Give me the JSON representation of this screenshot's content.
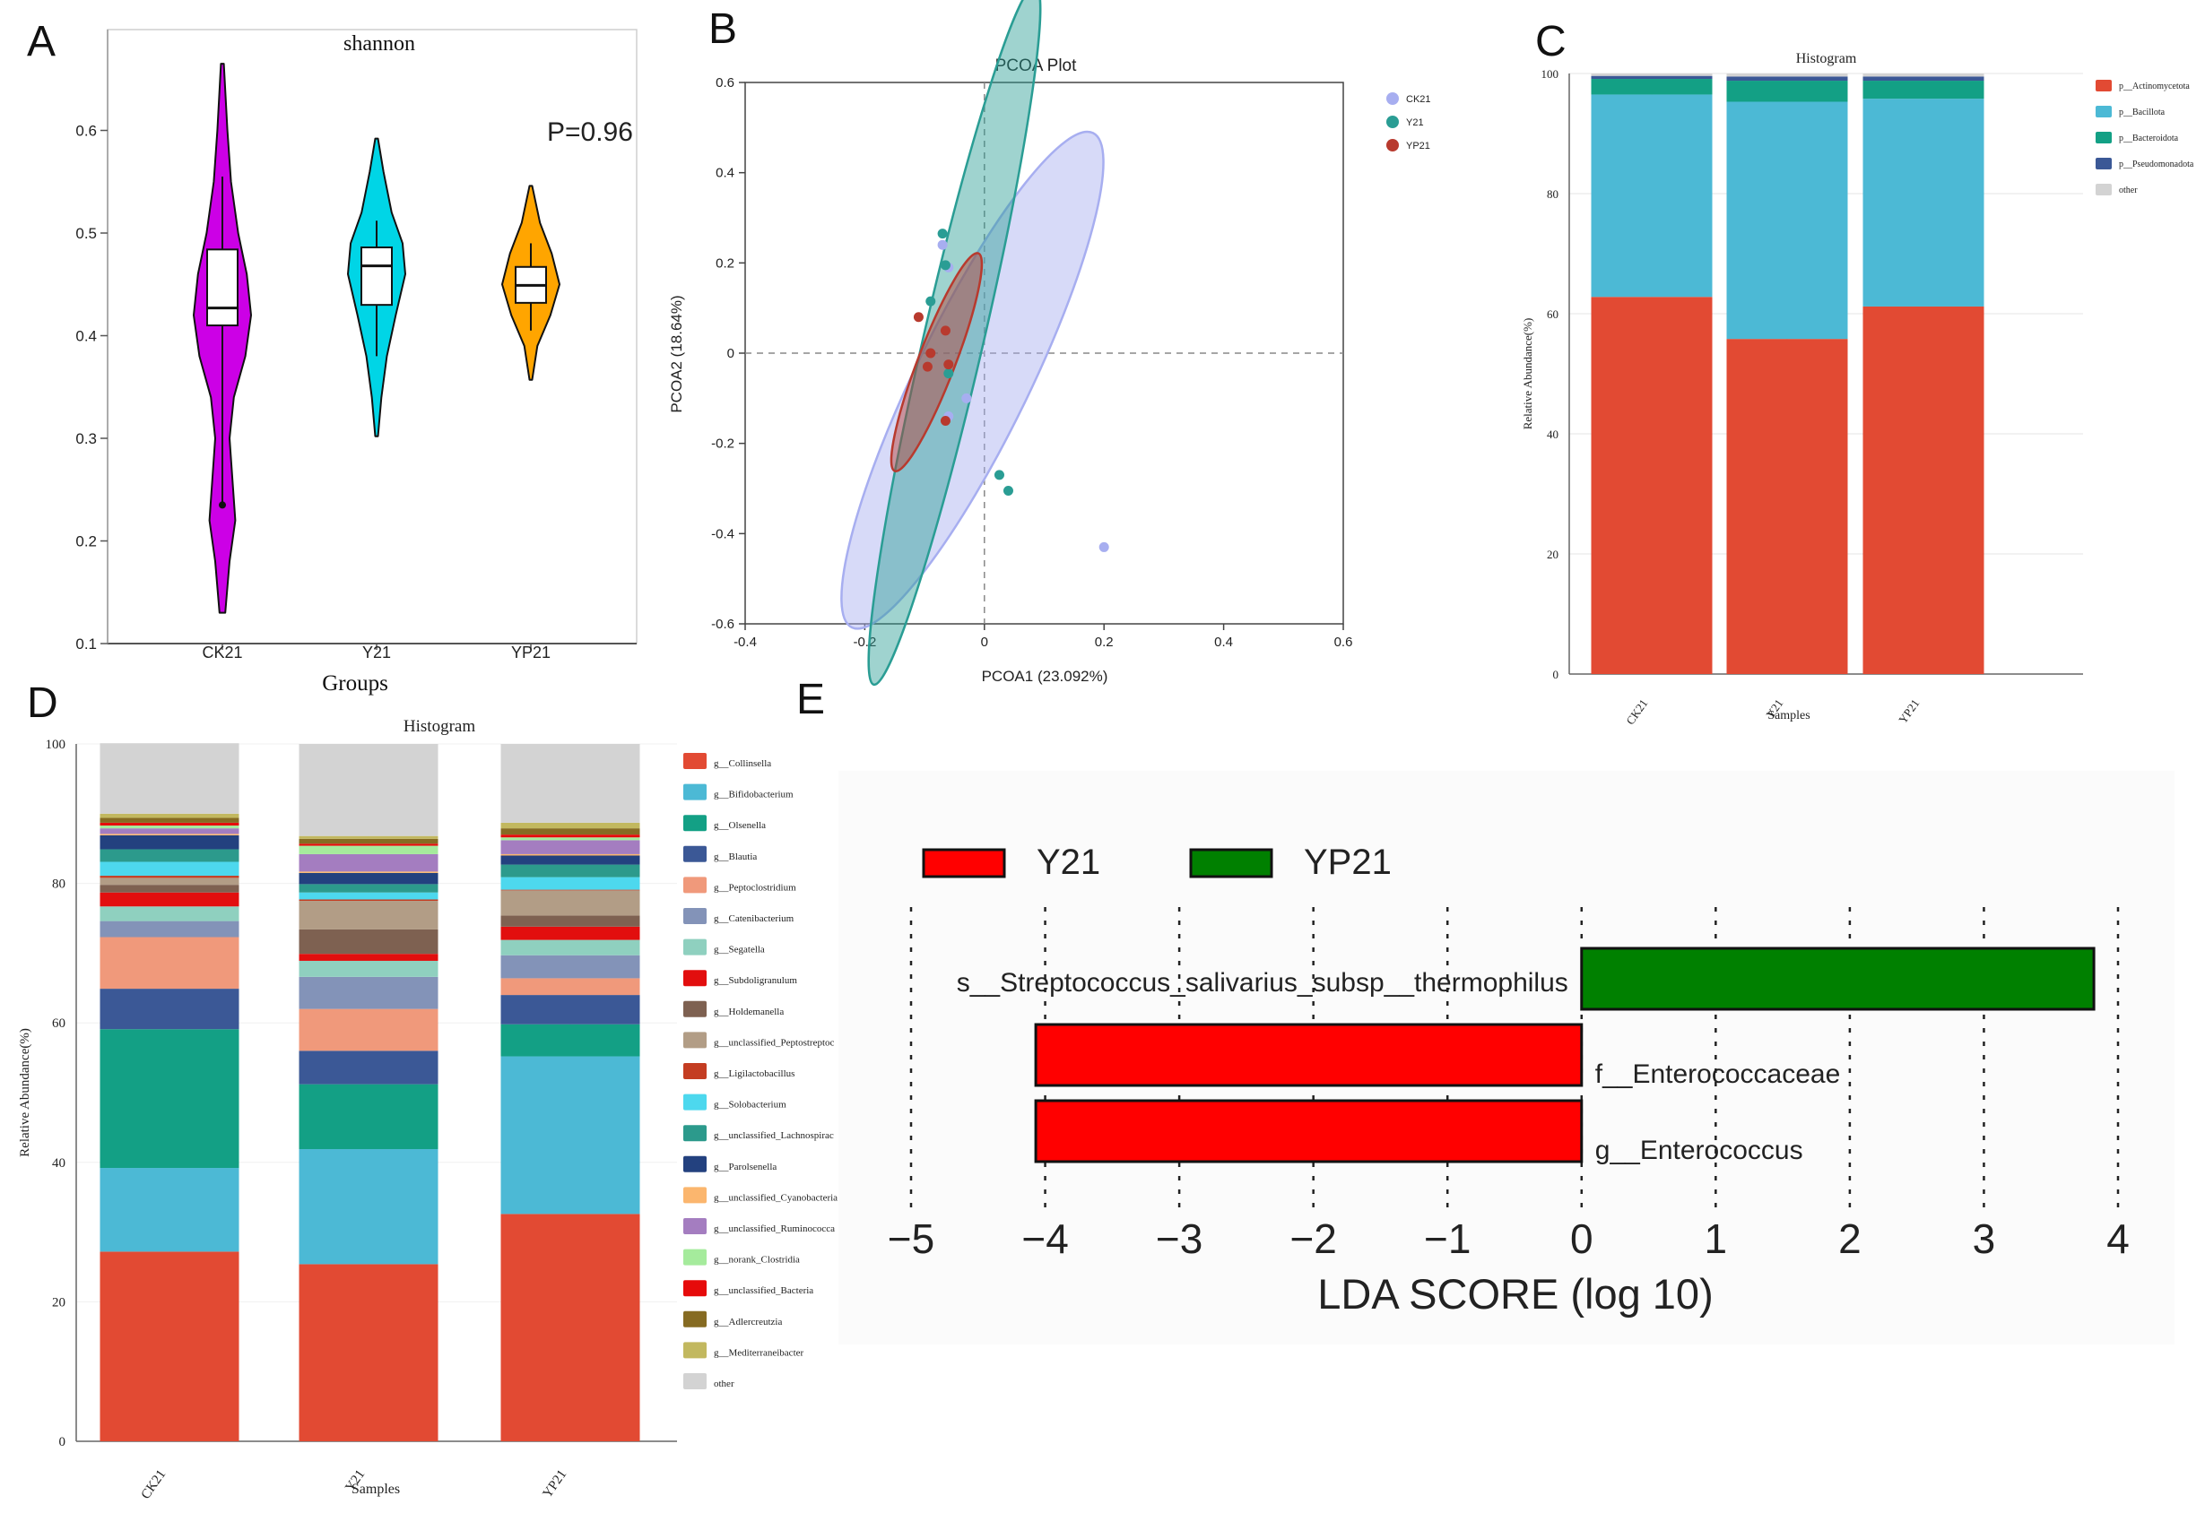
{
  "panels": {
    "a": "A",
    "b": "B",
    "c": "C",
    "d": "D",
    "e": "E"
  },
  "chart_data": [
    {
      "id": "A",
      "type": "violin",
      "title": "shannon",
      "xlabel": "Groups",
      "ylabel": "",
      "ylim": [
        0.1,
        0.7
      ],
      "yticks": [
        "0.1",
        "0.2",
        "0.3",
        "0.4",
        "0.5",
        "0.6"
      ],
      "annotation": "P=0.96",
      "groups": [
        {
          "name": "CK21",
          "color": "#cc00e6",
          "min": 0.13,
          "max": 0.665,
          "q1": 0.41,
          "median": 0.427,
          "q3": 0.484,
          "whisker_low": 0.235,
          "whisker_high": 0.555,
          "density": [
            [
              0.13,
              0.2
            ],
            [
              0.18,
              0.5
            ],
            [
              0.22,
              0.9
            ],
            [
              0.26,
              0.7
            ],
            [
              0.3,
              0.5
            ],
            [
              0.34,
              0.8
            ],
            [
              0.38,
              1.6
            ],
            [
              0.42,
              2.0
            ],
            [
              0.46,
              1.7
            ],
            [
              0.5,
              1.1
            ],
            [
              0.55,
              0.6
            ],
            [
              0.6,
              0.35
            ],
            [
              0.665,
              0.1
            ]
          ]
        },
        {
          "name": "Y21",
          "color": "#00d5e6",
          "min": 0.302,
          "max": 0.592,
          "q1": 0.43,
          "median": 0.468,
          "q3": 0.486,
          "whisker_low": 0.38,
          "whisker_high": 0.512,
          "density": [
            [
              0.302,
              0.1
            ],
            [
              0.34,
              0.35
            ],
            [
              0.38,
              0.75
            ],
            [
              0.42,
              1.4
            ],
            [
              0.46,
              2.1
            ],
            [
              0.49,
              1.9
            ],
            [
              0.52,
              1.1
            ],
            [
              0.56,
              0.5
            ],
            [
              0.592,
              0.1
            ]
          ]
        },
        {
          "name": "YP21",
          "color": "#ffa500",
          "min": 0.357,
          "max": 0.546,
          "q1": 0.432,
          "median": 0.449,
          "q3": 0.467,
          "whisker_low": 0.405,
          "whisker_high": 0.49,
          "density": [
            [
              0.357,
              0.1
            ],
            [
              0.39,
              0.5
            ],
            [
              0.42,
              1.5
            ],
            [
              0.45,
              2.2
            ],
            [
              0.48,
              1.6
            ],
            [
              0.51,
              0.7
            ],
            [
              0.546,
              0.1
            ]
          ]
        }
      ]
    },
    {
      "id": "B",
      "type": "scatter",
      "title": "PCOA Plot",
      "xlabel": "PCOA1 (23.092%)",
      "ylabel": "PCOA2 (18.64%)",
      "xlim": [
        -0.4,
        0.6
      ],
      "ylim": [
        -0.6,
        0.6
      ],
      "xticks": [
        "-0.4",
        "-0.2",
        "0",
        "0.2",
        "0.4",
        "0.6"
      ],
      "yticks": [
        "-0.6",
        "-0.4",
        "-0.2",
        "0",
        "0.2",
        "0.4",
        "0.6"
      ],
      "series": [
        {
          "name": "CK21",
          "color": "#a7aef0",
          "points": [
            [
              -0.07,
              0.24
            ],
            [
              -0.06,
              0.19
            ],
            [
              -0.03,
              -0.1
            ],
            [
              -0.06,
              -0.14
            ],
            [
              0.2,
              -0.43
            ]
          ],
          "ellipse": {
            "cx": -0.02,
            "cy": -0.06,
            "rx": 0.46,
            "ry": 0.095,
            "angle_deg": -64
          }
        },
        {
          "name": "Y21",
          "color": "#2a9d94",
          "points": [
            [
              -0.07,
              0.265
            ],
            [
              -0.065,
              0.195
            ],
            [
              -0.09,
              0.115
            ],
            [
              -0.06,
              -0.045
            ],
            [
              0.025,
              -0.27
            ],
            [
              0.04,
              -0.305
            ]
          ],
          "ellipse": {
            "cx": -0.05,
            "cy": 0.04,
            "rx": 0.6,
            "ry": 0.05,
            "angle_deg": -77
          }
        },
        {
          "name": "YP21",
          "color": "#b83a2e",
          "points": [
            [
              -0.11,
              0.08
            ],
            [
              -0.09,
              0.0
            ],
            [
              -0.095,
              -0.03
            ],
            [
              -0.065,
              0.05
            ],
            [
              -0.06,
              -0.025
            ],
            [
              -0.065,
              -0.15
            ]
          ],
          "ellipse": {
            "cx": -0.08,
            "cy": -0.02,
            "rx": 0.195,
            "ry": 0.031,
            "angle_deg": -69
          }
        }
      ]
    },
    {
      "id": "C",
      "type": "bar",
      "stacked": true,
      "title": "Histogram",
      "xlabel": "Samples",
      "ylabel": "Relative Abundance(%)",
      "ylim": [
        0,
        100
      ],
      "yticks": [
        "0",
        "20",
        "40",
        "60",
        "80",
        "100"
      ],
      "categories": [
        "CK21",
        "Y21",
        "YP21"
      ],
      "series": [
        {
          "name": "p__Actinomycetota",
          "color": "#e24a33",
          "values": [
            62.8,
            55.8,
            61.2
          ]
        },
        {
          "name": "p__Bacillota",
          "color": "#4cb9d5",
          "values": [
            33.7,
            39.5,
            34.6
          ]
        },
        {
          "name": "p__Bacteroidota",
          "color": "#13a085",
          "values": [
            2.6,
            3.5,
            3.0
          ]
        },
        {
          "name": "p__Pseudomonadota",
          "color": "#3b5896",
          "values": [
            0.5,
            0.7,
            0.7
          ]
        },
        {
          "name": "other",
          "color": "#d3d3d3",
          "values": [
            0.4,
            0.5,
            0.5
          ]
        }
      ]
    },
    {
      "id": "D",
      "type": "bar",
      "stacked": true,
      "title": "Histogram",
      "xlabel": "Samples",
      "ylabel": "Relative Abundance(%)",
      "ylim": [
        0,
        100
      ],
      "yticks": [
        "0",
        "20",
        "40",
        "60",
        "80",
        "100"
      ],
      "categories": [
        "CK21",
        "Y21",
        "YP21"
      ],
      "series": [
        {
          "name": "g__Collinsella",
          "color": "#e24a33",
          "values": [
            27.2,
            25.4,
            32.6
          ]
        },
        {
          "name": "g__Bifidobacterium",
          "color": "#4cb9d5",
          "values": [
            12.0,
            16.5,
            22.6
          ]
        },
        {
          "name": "g__Olsenella",
          "color": "#13a085",
          "values": [
            19.9,
            9.3,
            4.6
          ]
        },
        {
          "name": "g__Blautia",
          "color": "#3b5896",
          "values": [
            5.8,
            4.8,
            4.2
          ]
        },
        {
          "name": "g__Peptoclostridium",
          "color": "#f0997b",
          "values": [
            7.4,
            6.0,
            2.4
          ]
        },
        {
          "name": "g__Catenibacterium",
          "color": "#8393b8",
          "values": [
            2.3,
            4.6,
            3.3
          ]
        },
        {
          "name": "g__Segatella",
          "color": "#8fd0bf",
          "values": [
            2.1,
            2.3,
            2.2
          ]
        },
        {
          "name": "g__Subdoligranulum",
          "color": "#e20e0e",
          "values": [
            2.0,
            1.0,
            1.9
          ]
        },
        {
          "name": "g__Holdemanella",
          "color": "#7e6151",
          "values": [
            1.1,
            3.5,
            1.6
          ]
        },
        {
          "name": "g__unclassified_Peptostreptoc",
          "color": "#b29d86",
          "values": [
            1.0,
            4.1,
            3.6
          ]
        },
        {
          "name": "g__Ligilactobacillus",
          "color": "#c43d22",
          "values": [
            0.3,
            0.2,
            0.1
          ]
        },
        {
          "name": "g__Solobacterium",
          "color": "#4dd8ee",
          "values": [
            2.0,
            1.0,
            1.8
          ]
        },
        {
          "name": "g__unclassified_Lachnospirac",
          "color": "#2c9a8c",
          "values": [
            1.8,
            1.2,
            1.8
          ]
        },
        {
          "name": "g__Parolsenella",
          "color": "#23417f",
          "values": [
            2.0,
            1.6,
            1.3
          ]
        },
        {
          "name": "g__unclassified_Cyanobacteria",
          "color": "#fbb66e",
          "values": [
            0.2,
            0.2,
            0.2
          ]
        },
        {
          "name": "g__unclassified_Ruminococca",
          "color": "#a47dc0",
          "values": [
            0.8,
            2.5,
            2.0
          ]
        },
        {
          "name": "g__norank_Clostridia",
          "color": "#a5eb9c",
          "values": [
            0.4,
            1.2,
            0.4
          ]
        },
        {
          "name": "g__unclassified_Bacteria",
          "color": "#e60b0b",
          "values": [
            0.4,
            0.3,
            0.4
          ]
        },
        {
          "name": "g__Adlercreutzia",
          "color": "#866b22",
          "values": [
            0.7,
            0.7,
            0.9
          ]
        },
        {
          "name": "g__Mediterraneibacter",
          "color": "#c2b85f",
          "values": [
            0.6,
            0.4,
            0.8
          ]
        },
        {
          "name": "other",
          "color": "#d3d3d3",
          "values": [
            10.1,
            13.2,
            11.3
          ]
        }
      ]
    },
    {
      "id": "E",
      "type": "bar",
      "orientation": "horizontal",
      "title": "",
      "xlabel": "LDA SCORE (log 10)",
      "ylabel": "",
      "xlim": [
        -5,
        4
      ],
      "xticks": [
        "−5",
        "−4",
        "−3",
        "−2",
        "−1",
        "0",
        "1",
        "2",
        "3",
        "4"
      ],
      "legend": [
        {
          "name": "Y21",
          "color": "#ff0000"
        },
        {
          "name": "YP21",
          "color": "#008000"
        }
      ],
      "bars": [
        {
          "label": "s__Streptococcus_salivarius_subsp__thermophilus",
          "value": 3.82,
          "group": "YP21"
        },
        {
          "label": "f__Enterococcaceae",
          "value": -4.07,
          "group": "Y21"
        },
        {
          "label": "g__Enterococcus",
          "value": -4.07,
          "group": "Y21"
        }
      ]
    }
  ]
}
